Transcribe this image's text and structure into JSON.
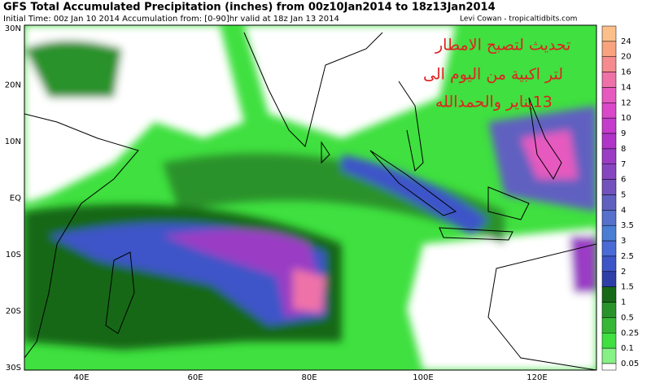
{
  "header": {
    "title": "GFS Total Accumulated Precipitation (inches) from 00z10Jan2014 to 18z13Jan2014",
    "subtitle": "Initial Time: 00z Jan 10 2014 Accumulation from: [0-90]hr valid at 18z Jan 13 2014",
    "credit": "Levi Cowan - tropicaltidbits.com"
  },
  "annotation": {
    "lines": [
      "تحديث لتصبح الامطار",
      "لتر اكبية من اليوم الى",
      "13يناير والحمدالله"
    ]
  },
  "map": {
    "lat_labels": [
      "30N",
      "20N",
      "10N",
      "EQ",
      "10S",
      "20S",
      "30S"
    ],
    "lon_labels": [
      "40E",
      "60E",
      "80E",
      "100E",
      "120E"
    ]
  },
  "colorbar": {
    "entries": [
      {
        "label": "24",
        "color": "#fbbf8a"
      },
      {
        "label": "20",
        "color": "#f9a37e"
      },
      {
        "label": "16",
        "color": "#f58b8e"
      },
      {
        "label": "14",
        "color": "#ee72a8"
      },
      {
        "label": "12",
        "color": "#e65abf"
      },
      {
        "label": "10",
        "color": "#d848c9"
      },
      {
        "label": "9",
        "color": "#c53ccc"
      },
      {
        "label": "8",
        "color": "#b034c8"
      },
      {
        "label": "7",
        "color": "#9a3cc4"
      },
      {
        "label": "6",
        "color": "#8646c0"
      },
      {
        "label": "5",
        "color": "#7252bc"
      },
      {
        "label": "4",
        "color": "#6060c0"
      },
      {
        "label": "3.5",
        "color": "#5670cc"
      },
      {
        "label": "3",
        "color": "#4a7ed4"
      },
      {
        "label": "2.5",
        "color": "#4a6ad6"
      },
      {
        "label": "2",
        "color": "#3e55c8"
      },
      {
        "label": "1.5",
        "color": "#2f3fa8"
      },
      {
        "label": "1",
        "color": "#176817"
      },
      {
        "label": "0.5",
        "color": "#2a922a"
      },
      {
        "label": "0.25",
        "color": "#36b836"
      },
      {
        "label": "0.1",
        "color": "#3fe03f"
      },
      {
        "label": "0.05",
        "color": "#86f286"
      }
    ]
  }
}
